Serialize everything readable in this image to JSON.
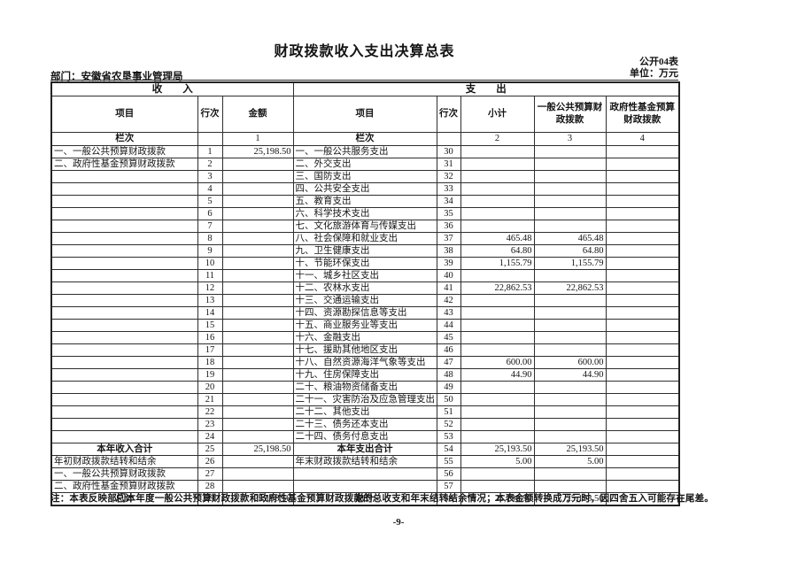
{
  "header": {
    "title": "财政拨款收入支出决算总表",
    "table_code": "公开04表",
    "unit": "单位：万元",
    "department": "部门：安徽省农垦事业管理局"
  },
  "table": {
    "section_income": "收　　入",
    "section_expense": "支　　出",
    "income_columns": [
      "项目",
      "行次",
      "金额"
    ],
    "expense_columns": [
      "项目",
      "行次",
      "小计",
      "一般公共预算财政拨款",
      "政府性基金预算财政拨款"
    ],
    "lanci_row": [
      "栏次",
      "",
      "1",
      "栏次",
      "",
      "2",
      "3",
      "4"
    ],
    "total_rows": [
      24,
      28
    ],
    "rows": [
      [
        "一、一般公共预算财政拨款",
        "1",
        "25,198.50",
        "一、一般公共服务支出",
        "30",
        "",
        "",
        ""
      ],
      [
        "二、政府性基金预算财政拨款",
        "2",
        "",
        "二、外交支出",
        "31",
        "",
        "",
        ""
      ],
      [
        "",
        "3",
        "",
        "三、国防支出",
        "32",
        "",
        "",
        ""
      ],
      [
        "",
        "4",
        "",
        "四、公共安全支出",
        "33",
        "",
        "",
        ""
      ],
      [
        "",
        "5",
        "",
        "五、教育支出",
        "34",
        "",
        "",
        ""
      ],
      [
        "",
        "6",
        "",
        "六、科学技术支出",
        "35",
        "",
        "",
        ""
      ],
      [
        "",
        "7",
        "",
        "七、文化旅游体育与传媒支出",
        "36",
        "",
        "",
        ""
      ],
      [
        "",
        "8",
        "",
        "八、社会保障和就业支出",
        "37",
        "465.48",
        "465.48",
        ""
      ],
      [
        "",
        "9",
        "",
        "九、卫生健康支出",
        "38",
        "64.80",
        "64.80",
        ""
      ],
      [
        "",
        "10",
        "",
        "十、节能环保支出",
        "39",
        "1,155.79",
        "1,155.79",
        ""
      ],
      [
        "",
        "11",
        "",
        "十一、城乡社区支出",
        "40",
        "",
        "",
        ""
      ],
      [
        "",
        "12",
        "",
        "十二、农林水支出",
        "41",
        "22,862.53",
        "22,862.53",
        ""
      ],
      [
        "",
        "13",
        "",
        "十三、交通运输支出",
        "42",
        "",
        "",
        ""
      ],
      [
        "",
        "14",
        "",
        "十四、资源勘探信息等支出",
        "43",
        "",
        "",
        ""
      ],
      [
        "",
        "15",
        "",
        "十五、商业服务业等支出",
        "44",
        "",
        "",
        ""
      ],
      [
        "",
        "16",
        "",
        "十六、金融支出",
        "45",
        "",
        "",
        ""
      ],
      [
        "",
        "17",
        "",
        "十七、援助其他地区支出",
        "46",
        "",
        "",
        ""
      ],
      [
        "",
        "18",
        "",
        "十八、自然资源海洋气象等支出",
        "47",
        "600.00",
        "600.00",
        ""
      ],
      [
        "",
        "19",
        "",
        "十九、住房保障支出",
        "48",
        "44.90",
        "44.90",
        ""
      ],
      [
        "",
        "20",
        "",
        "二十、粮油物资储备支出",
        "49",
        "",
        "",
        ""
      ],
      [
        "",
        "21",
        "",
        "二十一、灾害防治及应急管理支出",
        "50",
        "",
        "",
        ""
      ],
      [
        "",
        "22",
        "",
        "二十二、其他支出",
        "51",
        "",
        "",
        ""
      ],
      [
        "",
        "23",
        "",
        "二十三、债务还本支出",
        "52",
        "",
        "",
        ""
      ],
      [
        "",
        "24",
        "",
        "二十四、债务付息支出",
        "53",
        "",
        "",
        ""
      ],
      [
        "本年收入合计",
        "25",
        "25,198.50",
        "本年支出合计",
        "54",
        "25,193.50",
        "25,193.50",
        ""
      ],
      [
        "年初财政拨款结转和结余",
        "26",
        "",
        "年末财政拨款结转和结余",
        "55",
        "5.00",
        "5.00",
        ""
      ],
      [
        "一、一般公共预算财政拨款",
        "27",
        "",
        "",
        "56",
        "",
        "",
        ""
      ],
      [
        "二、政府性基金预算财政拨款",
        "28",
        "",
        "",
        "57",
        "",
        "",
        ""
      ],
      [
        "总计",
        "29",
        "25,198.50",
        "总计",
        "58",
        "25,198.50",
        "25,198.50",
        ""
      ]
    ]
  },
  "footnote": "注：本表反映部门本年度一般公共预算财政拨款和政府性基金预算财政拨款的总收支和年末结转结余情况；本表金额转换成万元时，因四舍五入可能存在尾差。",
  "page_number": "-9-"
}
